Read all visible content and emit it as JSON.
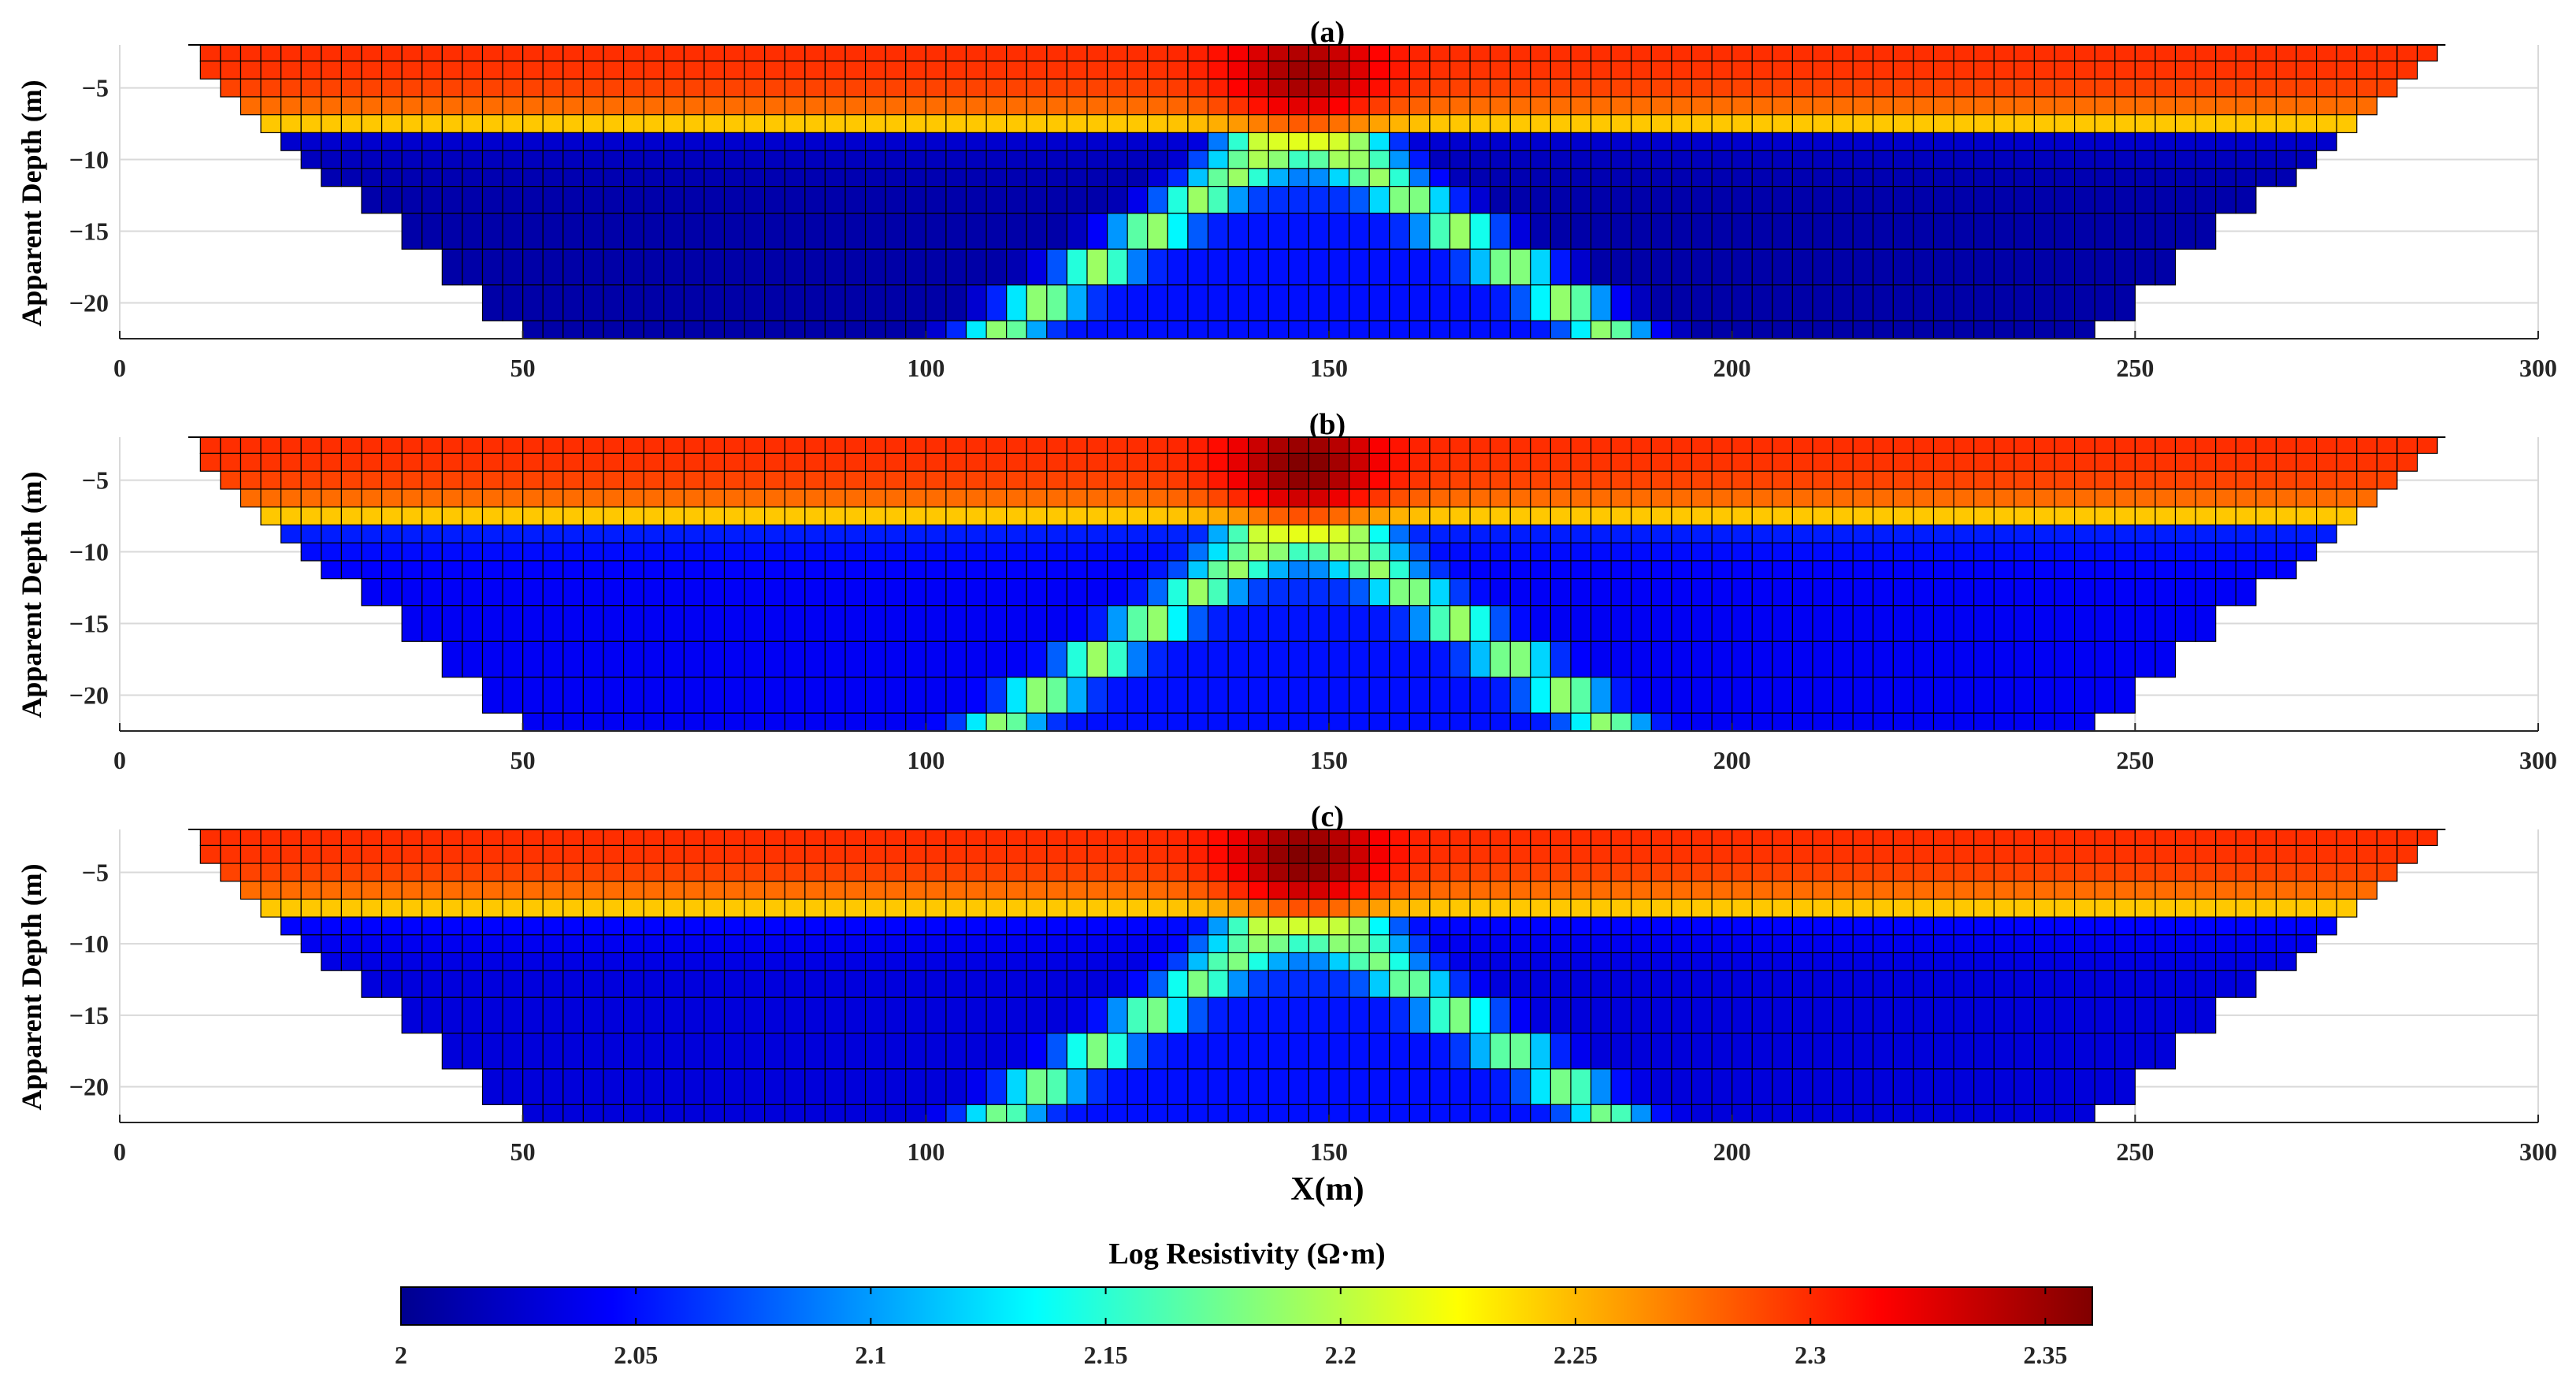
{
  "figure": {
    "xlabel": "X(m)",
    "colorbar": {
      "label": "Log Resistivity (Ω·m)",
      "range": [
        2,
        2.36
      ],
      "ticks": [
        "2",
        "2.05",
        "2.1",
        "2.15",
        "2.2",
        "2.25",
        "2.3",
        "2.35"
      ],
      "colormap": "jet"
    }
  },
  "chart_data": [
    {
      "type": "heatmap",
      "title": "(a)",
      "xlabel": "",
      "ylabel": "Apparent Depth (m)",
      "xlim": [
        0,
        300
      ],
      "ylim": [
        -22.5,
        -2
      ],
      "xticks": [
        "0",
        "50",
        "100",
        "150",
        "200",
        "250",
        "300"
      ],
      "yticks": [
        "-5",
        "-10",
        "-15",
        "-20"
      ],
      "grid": true,
      "pseudosection": {
        "pseudodepths": [
          -2.5,
          -3.75,
          -5.0,
          -6.25,
          -7.5,
          -8.75,
          -10.0,
          -11.25,
          -12.5,
          -15.0,
          -17.5,
          -20.0,
          -22.5
        ],
        "x_left": [
          10,
          10,
          12.5,
          15,
          17.5,
          20,
          22.5,
          25,
          30,
          35,
          40,
          45,
          50
        ],
        "x_right": [
          287.5,
          285,
          282.5,
          280,
          277.5,
          275,
          272.5,
          270,
          265,
          260,
          255,
          250,
          245
        ],
        "cell_width": 2.5
      },
      "model": {
        "background_top": 2.3,
        "background_bottom": 2.05,
        "transition_depth": -9.0,
        "anomaly_center_x": 147,
        "anomaly_peak": 2.35,
        "anomaly_depth": -4.0,
        "v_apex_depth": -8.0,
        "v_slope": 2.7,
        "v_band_value": 2.19,
        "deep_core_value": 2.01
      }
    },
    {
      "type": "heatmap",
      "title": "(b)",
      "xlabel": "",
      "ylabel": "Apparent Depth (m)",
      "xlim": [
        0,
        300
      ],
      "ylim": [
        -22.5,
        -2
      ],
      "xticks": [
        "0",
        "50",
        "100",
        "150",
        "200",
        "250",
        "300"
      ],
      "yticks": [
        "-5",
        "-10",
        "-15",
        "-20"
      ],
      "grid": true,
      "pseudosection": {
        "pseudodepths": [
          -2.5,
          -3.75,
          -5.0,
          -6.25,
          -7.5,
          -8.75,
          -10.0,
          -11.25,
          -12.5,
          -15.0,
          -17.5,
          -20.0,
          -22.5
        ],
        "x_left": [
          10,
          10,
          12.5,
          15,
          17.5,
          20,
          22.5,
          25,
          30,
          35,
          40,
          45,
          50
        ],
        "x_right": [
          287.5,
          285,
          282.5,
          280,
          277.5,
          275,
          272.5,
          270,
          265,
          260,
          255,
          250,
          245
        ],
        "cell_width": 2.5
      },
      "model": {
        "background_top": 2.3,
        "background_bottom": 2.05,
        "transition_depth": -9.0,
        "anomaly_center_x": 147,
        "anomaly_peak": 2.36,
        "anomaly_depth": -4.0,
        "v_apex_depth": -8.0,
        "v_slope": 2.7,
        "v_band_value": 2.19,
        "deep_core_value": 2.04
      }
    },
    {
      "type": "heatmap",
      "title": "(c)",
      "xlabel": "X(m)",
      "ylabel": "Apparent Depth (m)",
      "xlim": [
        0,
        300
      ],
      "ylim": [
        -22.5,
        -2
      ],
      "xticks": [
        "0",
        "50",
        "100",
        "150",
        "200",
        "250",
        "300"
      ],
      "yticks": [
        "-5",
        "-10",
        "-15",
        "-20"
      ],
      "grid": true,
      "pseudosection": {
        "pseudodepths": [
          -2.5,
          -3.75,
          -5.0,
          -6.25,
          -7.5,
          -8.75,
          -10.0,
          -11.25,
          -12.5,
          -15.0,
          -17.5,
          -20.0,
          -22.5
        ],
        "x_left": [
          10,
          10,
          12.5,
          15,
          17.5,
          20,
          22.5,
          25,
          30,
          35,
          40,
          45,
          50
        ],
        "x_right": [
          287.5,
          285,
          282.5,
          280,
          277.5,
          275,
          272.5,
          270,
          265,
          260,
          255,
          250,
          245
        ],
        "cell_width": 2.5
      },
      "model": {
        "background_top": 2.3,
        "background_bottom": 2.05,
        "transition_depth": -9.0,
        "anomaly_center_x": 147,
        "anomaly_peak": 2.36,
        "anomaly_depth": -4.0,
        "v_apex_depth": -8.0,
        "v_slope": 2.7,
        "v_band_value": 2.18,
        "deep_core_value": 2.03
      }
    }
  ]
}
